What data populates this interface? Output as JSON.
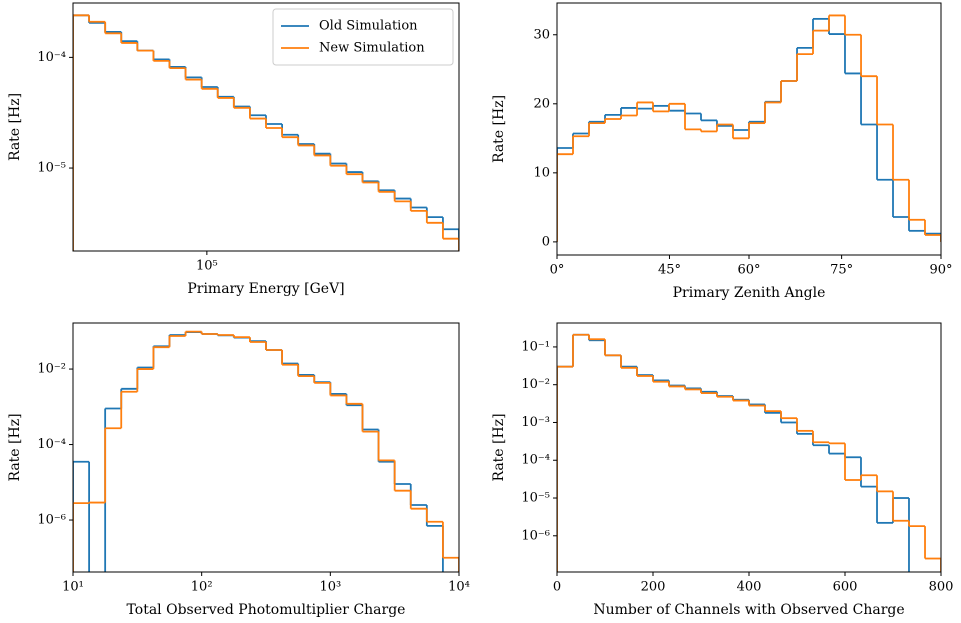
{
  "chart_data": [
    {
      "type": "histogram",
      "xscale": "log",
      "yscale": "log",
      "xlabel": "Primary Energy [GeV]",
      "ylabel": "Rate [Hz]",
      "xlim": [
        45000,
        450000
      ],
      "ylim": [
        1.78e-06,
        0.00031
      ],
      "xticks": [
        {
          "value": 100000,
          "label": "10⁵"
        }
      ],
      "yticks": [
        {
          "value": 0.0001,
          "label": "10⁻⁴"
        },
        {
          "value": 1e-05,
          "label": "10⁻⁵"
        }
      ],
      "legend": "upper right",
      "bins": [
        45000,
        49530,
        54520,
        60010,
        66050,
        72700,
        80020,
        88080,
        96950,
        106700,
        117460,
        129290,
        142300,
        156630,
        172400,
        189770,
        208880,
        229910,
        253070,
        278550,
        306600,
        337480,
        371460,
        408870,
        450000
      ],
      "series": [
        {
          "name": "Old Simulation",
          "color": "#1f77b4",
          "values": [
            0.00024,
            0.000205,
            0.00017,
            0.00014,
            0.000115,
            9.6e-05,
            8.2e-05,
            6.6e-05,
            5.4e-05,
            4.4e-05,
            3.6e-05,
            3e-05,
            2.5e-05,
            2e-05,
            1.65e-05,
            1.35e-05,
            1.1e-05,
            9.2e-06,
            7.6e-06,
            6.3e-06,
            5.3e-06,
            4.4e-06,
            3.6e-06,
            2.8e-06
          ]
        },
        {
          "name": "New Simulation",
          "color": "#ff7f0e",
          "values": [
            0.00024,
            0.00021,
            0.000165,
            0.000135,
            0.000115,
            9.3e-05,
            8e-05,
            6.3e-05,
            5.2e-05,
            4.3e-05,
            3.5e-05,
            2.8e-05,
            2.3e-05,
            1.9e-05,
            1.6e-05,
            1.3e-05,
            1.05e-05,
            8.8e-06,
            7.4e-06,
            6.1e-06,
            5e-06,
            4.1e-06,
            3.2e-06,
            2.3e-06
          ]
        }
      ]
    },
    {
      "type": "histogram",
      "xscale": "cos",
      "yscale": "linear",
      "xlabel": "Primary Zenith Angle",
      "ylabel": "Rate [Hz]",
      "xlim": [
        0,
        90
      ],
      "ylim": [
        -1.9,
        34.6
      ],
      "xticks": [
        {
          "value": 0,
          "label": "0°"
        },
        {
          "value": 45,
          "label": "45°"
        },
        {
          "value": 60,
          "label": "60°"
        },
        {
          "value": 75,
          "label": "75°"
        },
        {
          "value": 90,
          "label": "90°"
        }
      ],
      "yticks": [
        0,
        10,
        20,
        30
      ],
      "bins": [
        0,
        16.6,
        23.56,
        28.96,
        33.56,
        37.67,
        41.41,
        44.9,
        48.19,
        51.32,
        54.31,
        57.2,
        60,
        62.72,
        65.38,
        67.98,
        70.53,
        73.04,
        75.52,
        77.98,
        80.41,
        82.82,
        85.22,
        87.61,
        90
      ],
      "series": [
        {
          "color": "#1f77b4",
          "values": [
            13.6,
            15.7,
            17.4,
            18.4,
            19.4,
            19.3,
            19.7,
            19.0,
            18.6,
            17.6,
            16.8,
            16.2,
            17.4,
            20.3,
            23.3,
            28.1,
            32.3,
            30.1,
            24.4,
            17.0,
            9.0,
            3.6,
            1.6,
            1.2
          ]
        },
        {
          "color": "#ff7f0e",
          "values": [
            12.7,
            15.3,
            17.2,
            17.8,
            18.3,
            20.2,
            18.9,
            20.0,
            16.3,
            16.0,
            17.0,
            15.0,
            17.2,
            20.2,
            23.3,
            27.2,
            30.6,
            32.8,
            30.0,
            24.0,
            17.0,
            9.0,
            3.2,
            1.0
          ]
        }
      ]
    },
    {
      "type": "histogram",
      "xscale": "log",
      "yscale": "log",
      "xlabel": "Total Observed Photomultiplier Charge",
      "ylabel": "Rate [Hz]",
      "xlim": [
        10,
        10000
      ],
      "ylim": [
        4.2e-08,
        0.166
      ],
      "xticks": [
        {
          "value": 10,
          "label": "10¹"
        },
        {
          "value": 100,
          "label": "10²"
        },
        {
          "value": 1000,
          "label": "10³"
        },
        {
          "value": 10000,
          "label": "10⁴"
        }
      ],
      "yticks": [
        {
          "value": 0.01,
          "label": "10⁻²"
        },
        {
          "value": 0.0001,
          "label": "10⁻⁴"
        },
        {
          "value": 1e-06,
          "label": "10⁻⁶"
        }
      ],
      "bins": [
        10,
        13.34,
        17.78,
        23.71,
        31.62,
        42.17,
        56.23,
        74.99,
        100,
        133.4,
        177.8,
        237.1,
        316.2,
        421.7,
        562.3,
        749.9,
        1000,
        1334,
        1778,
        2371,
        3162,
        4217,
        5623,
        7499,
        10000
      ],
      "series": [
        {
          "color": "#1f77b4",
          "values": [
            3.5e-05,
            0,
            0.0009,
            0.003,
            0.011,
            0.04,
            0.08,
            0.095,
            0.085,
            0.078,
            0.068,
            0.055,
            0.032,
            0.014,
            0.007,
            0.0045,
            0.0022,
            0.0011,
            0.00025,
            3.5e-05,
            9e-06,
            2.5e-06,
            7e-07,
            0
          ]
        },
        {
          "color": "#ff7f0e",
          "values": [
            2.8e-06,
            2.9e-06,
            0.00027,
            0.0025,
            0.01,
            0.038,
            0.075,
            0.098,
            0.085,
            0.08,
            0.07,
            0.052,
            0.032,
            0.013,
            0.0065,
            0.0043,
            0.002,
            0.0012,
            0.00022,
            3.8e-05,
            6e-06,
            2e-06,
            9e-07,
            1e-07
          ]
        }
      ]
    },
    {
      "type": "histogram",
      "xscale": "linear",
      "yscale": "log",
      "xlabel": "Number of Channels with Observed Charge",
      "ylabel": "Rate [Hz]",
      "xlim": [
        0,
        800
      ],
      "ylim": [
        1.1e-07,
        0.43
      ],
      "xticks": [
        0,
        200,
        400,
        600,
        800
      ],
      "yticks": [
        {
          "value": 0.1,
          "label": "10⁻¹"
        },
        {
          "value": 0.01,
          "label": "10⁻²"
        },
        {
          "value": 0.001,
          "label": "10⁻³"
        },
        {
          "value": 0.0001,
          "label": "10⁻⁴"
        },
        {
          "value": 1e-05,
          "label": "10⁻⁵"
        },
        {
          "value": 1e-06,
          "label": "10⁻⁶"
        }
      ],
      "bins": [
        0,
        33.3,
        66.7,
        100,
        133.3,
        166.7,
        200,
        233.3,
        266.7,
        300,
        333.3,
        366.7,
        400,
        433.3,
        466.7,
        500,
        533.3,
        566.7,
        600,
        633.3,
        666.7,
        700,
        733.3,
        766.7,
        800
      ],
      "series": [
        {
          "color": "#1f77b4",
          "values": [
            0.03,
            0.21,
            0.15,
            0.06,
            0.03,
            0.018,
            0.013,
            0.0095,
            0.008,
            0.0065,
            0.005,
            0.004,
            0.003,
            0.0018,
            0.001,
            0.0005,
            0.00025,
            0.00015,
            0.00012,
            2e-05,
            2.2e-06,
            1e-05,
            0,
            0
          ]
        },
        {
          "color": "#ff7f0e",
          "values": [
            0.03,
            0.21,
            0.16,
            0.06,
            0.028,
            0.017,
            0.012,
            0.009,
            0.0075,
            0.006,
            0.0048,
            0.0038,
            0.0028,
            0.002,
            0.0013,
            0.0006,
            0.0003,
            0.00028,
            3e-05,
            4e-05,
            1.5e-05,
            2.5e-06,
            1.8e-06,
            2.5e-07
          ]
        }
      ]
    }
  ]
}
